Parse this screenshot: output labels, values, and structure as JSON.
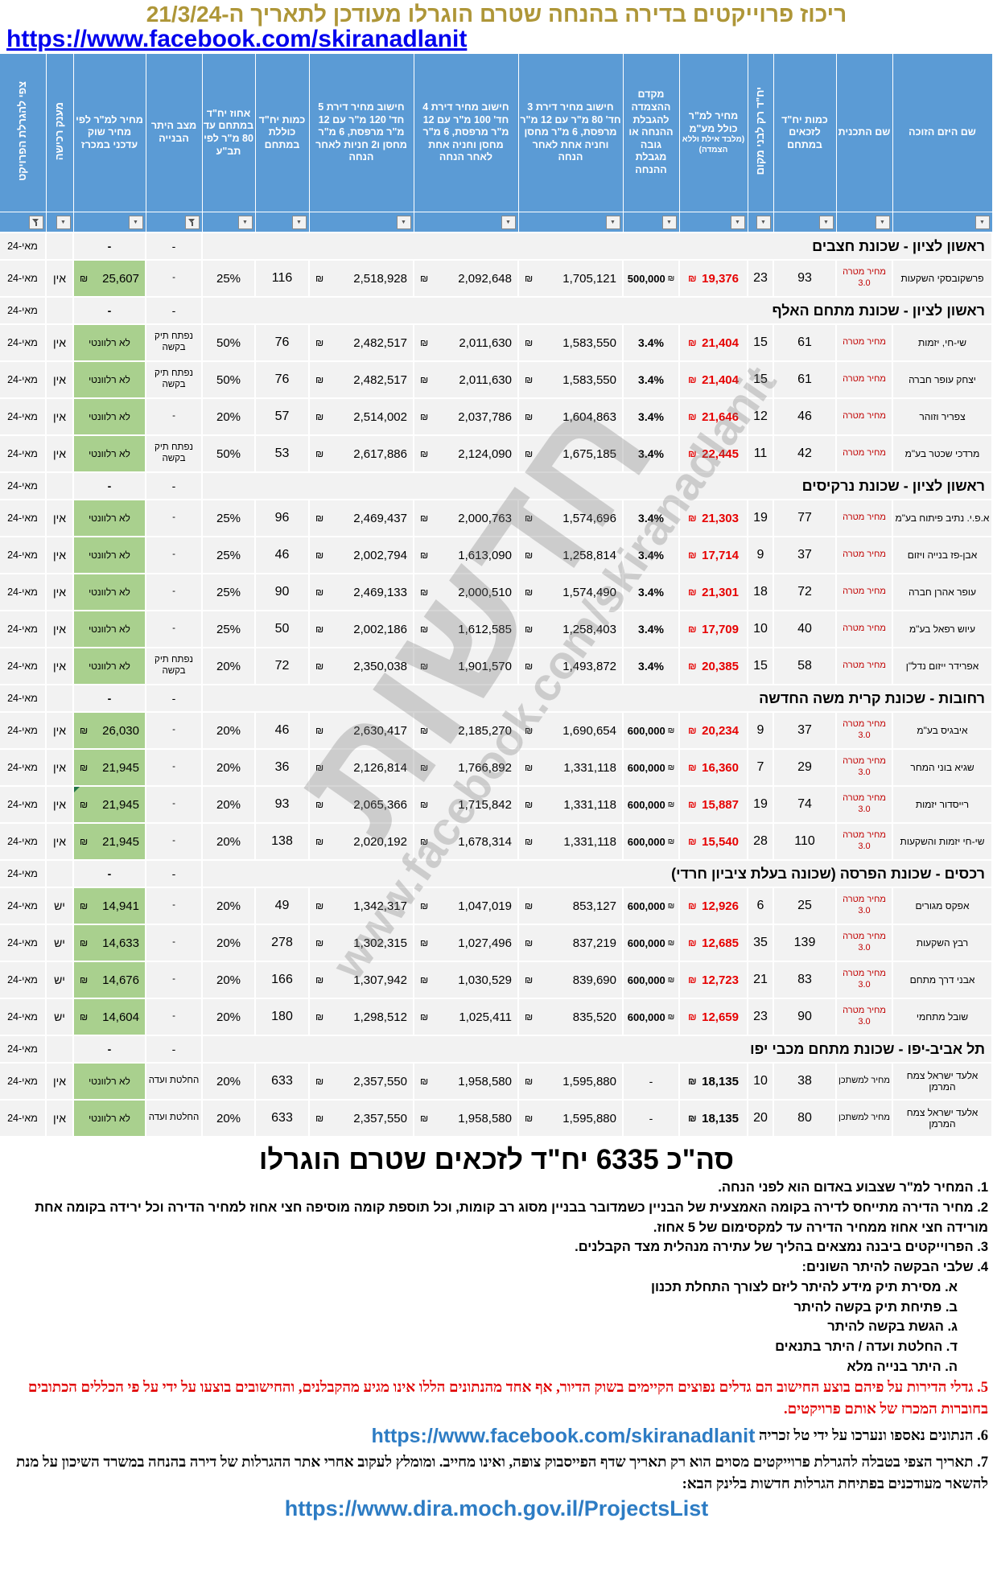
{
  "currency": "₪",
  "icons": {
    "filter_dropdown": "▼"
  },
  "header": {
    "title": "ריכוז פרוייקטים בדירה בהנחה שטרם הוגרלו מעודכן לתאריך ה-21/3/24",
    "facebook_url": "https://www.facebook.com/skiranadlanit"
  },
  "watermark": {
    "line1": "חדשות",
    "line2": "www.facebook.com/skiranadlanit"
  },
  "columns": [
    {
      "label": "שם היזם הזוכה"
    },
    {
      "label": "שם התכנית"
    },
    {
      "label": "כמות יח\"ד לזכאים במתחם"
    },
    {
      "label": "יח\"ד רק לבני מקום",
      "vertical": true
    },
    {
      "label": "מחיר למ\"ר כולל מע\"מ",
      "sub": "(מלבד אילת וללא הצמדה)"
    },
    {
      "label": "מקדם ההצמדה להגבלת ההנחה או גובה מגבלת ההנחה"
    },
    {
      "label": "חישוב מחיר דירת 3 חד' 80 מ\"ר עם 12 מ\"ר מרפסת, 6 מ\"ר מחסן וחניה אחת לאחר הנחה"
    },
    {
      "label": "חישוב מחיר דירת 4 חד' 100 מ\"ר עם 12 מ\"ר מרפסת, 6 מ\"ר מחסן וחניה אחת לאחר הנחה"
    },
    {
      "label": "חישוב מחיר דירת 5 חד' 120 מ\"ר עם 12 מ\"ר מרפסת, 6 מ\"ר מחסן ו2 חניות לאחר הנחה"
    },
    {
      "label": "כמות יח\"ד כוללת במתחם"
    },
    {
      "label": "אחוז יח\"ד במתחם עד 80 מ\"ר לפי תב\"ע"
    },
    {
      "label": "מצב היתר הבנייה",
      "funnel": true
    },
    {
      "label": "מחיר למ\"ר לפי מחיר שוק עדכני במכרז"
    },
    {
      "label": "מענק רכישה",
      "vertical": true
    },
    {
      "label": "צפי להגרלת הפרויקט",
      "vertical": true,
      "funnel": true
    }
  ],
  "sections": [
    {
      "title": "ראשון לציון - שכונת חצבים",
      "permit": "-",
      "market": "-",
      "forecast": "מאי-24",
      "rows": [
        {
          "developer": "פרשקובסקי השקעות",
          "plan": "מחיר מטרה 3.0",
          "plan_color": "red",
          "eligible": "93",
          "locals": "23",
          "sqm": "19,376",
          "sqm_color": "red",
          "coef": "500,000",
          "coef_kind": "money",
          "p3": "1,705,121",
          "p4": "2,092,648",
          "p5": "2,518,928",
          "total": "116",
          "pct": "25%",
          "permit": "-",
          "market": "25,607",
          "market_kind": "money",
          "grant": "אין",
          "forecast": "מאי-24",
          "flags": []
        }
      ]
    },
    {
      "title": "ראשון לציון - שכונת מתחם האלף",
      "permit": "-",
      "market": "-",
      "forecast": "מאי-24",
      "rows": [
        {
          "developer": "שי-חי, יזמות",
          "plan": "מחיר מטרה",
          "plan_color": "red",
          "eligible": "61",
          "locals": "15",
          "sqm": "21,404",
          "sqm_color": "red",
          "coef": "3.4%",
          "coef_kind": "pct",
          "p3": "1,583,550",
          "p4": "2,011,630",
          "p5": "2,482,517",
          "total": "76",
          "pct": "50%",
          "permit": "נפתח תיק בקשה",
          "market": "לא רלוונטי",
          "market_kind": "text",
          "grant": "אין",
          "forecast": "מאי-24",
          "flags": []
        },
        {
          "developer": "יצחק עופר חברה",
          "plan": "מחיר מטרה",
          "plan_color": "red",
          "eligible": "61",
          "locals": "15",
          "sqm": "21,404",
          "sqm_color": "red",
          "coef": "3.4%",
          "coef_kind": "pct",
          "p3": "1,583,550",
          "p4": "2,011,630",
          "p5": "2,482,517",
          "total": "76",
          "pct": "50%",
          "permit": "נפתח תיק בקשה",
          "market": "לא רלוונטי",
          "market_kind": "text",
          "grant": "אין",
          "forecast": "מאי-24",
          "flags": []
        },
        {
          "developer": "צפריר וזוהר",
          "plan": "מחיר מטרה",
          "plan_color": "red",
          "eligible": "46",
          "locals": "12",
          "sqm": "21,646",
          "sqm_color": "red",
          "coef": "3.4%",
          "coef_kind": "pct",
          "p3": "1,604,863",
          "p4": "2,037,786",
          "p5": "2,514,002",
          "total": "57",
          "pct": "20%",
          "permit": "-",
          "market": "לא רלוונטי",
          "market_kind": "text",
          "grant": "אין",
          "forecast": "מאי-24",
          "flags": []
        },
        {
          "developer": "מרדכי שכטר בע\"מ",
          "plan": "מחיר מטרה",
          "plan_color": "red",
          "eligible": "42",
          "locals": "11",
          "sqm": "22,445",
          "sqm_color": "red",
          "coef": "3.4%",
          "coef_kind": "pct",
          "p3": "1,675,185",
          "p4": "2,124,090",
          "p5": "2,617,886",
          "total": "53",
          "pct": "50%",
          "permit": "נפתח תיק בקשה",
          "market": "לא רלוונטי",
          "market_kind": "text",
          "grant": "אין",
          "forecast": "מאי-24",
          "flags": []
        }
      ]
    },
    {
      "title": "ראשון לציון - שכונת נרקיסים",
      "permit": "-",
      "market": "-",
      "forecast": "מאי-24",
      "rows": [
        {
          "developer": "א.פ.י. נתיב פיתוח בע\"מ",
          "plan": "מחיר מטרה",
          "plan_color": "red",
          "eligible": "77",
          "locals": "19",
          "sqm": "21,303",
          "sqm_color": "red",
          "coef": "3.4%",
          "coef_kind": "pct",
          "p3": "1,574,696",
          "p4": "2,000,763",
          "p5": "2,469,437",
          "total": "96",
          "pct": "25%",
          "permit": "-",
          "market": "לא רלוונטי",
          "market_kind": "text",
          "grant": "אין",
          "forecast": "מאי-24",
          "flags": []
        },
        {
          "developer": "אבן-פז בנייה ויזום",
          "plan": "מחיר מטרה",
          "plan_color": "red",
          "eligible": "37",
          "locals": "9",
          "sqm": "17,714",
          "sqm_color": "red",
          "coef": "3.4%",
          "coef_kind": "pct",
          "p3": "1,258,814",
          "p4": "1,613,090",
          "p5": "2,002,794",
          "total": "46",
          "pct": "25%",
          "permit": "-",
          "market": "לא רלוונטי",
          "market_kind": "text",
          "grant": "אין",
          "forecast": "מאי-24",
          "flags": []
        },
        {
          "developer": "עופר אהרן חברה",
          "plan": "מחיר מטרה",
          "plan_color": "red",
          "eligible": "72",
          "locals": "18",
          "sqm": "21,301",
          "sqm_color": "red",
          "coef": "3.4%",
          "coef_kind": "pct",
          "p3": "1,574,490",
          "p4": "2,000,510",
          "p5": "2,469,133",
          "total": "90",
          "pct": "25%",
          "permit": "-",
          "market": "לא רלוונטי",
          "market_kind": "text",
          "grant": "אין",
          "forecast": "מאי-24",
          "flags": []
        },
        {
          "developer": "עיוש רפאל בע\"מ",
          "plan": "מחיר מטרה",
          "plan_color": "red",
          "eligible": "40",
          "locals": "10",
          "sqm": "17,709",
          "sqm_color": "red",
          "coef": "3.4%",
          "coef_kind": "pct",
          "p3": "1,258,403",
          "p4": "1,612,585",
          "p5": "2,002,186",
          "total": "50",
          "pct": "25%",
          "permit": "-",
          "market": "לא רלוונטי",
          "market_kind": "text",
          "grant": "אין",
          "forecast": "מאי-24",
          "flags": []
        },
        {
          "developer": "אפרידר ייזום נדל\"ן",
          "plan": "מחיר מטרה",
          "plan_color": "red",
          "eligible": "58",
          "locals": "15",
          "sqm": "20,385",
          "sqm_color": "red",
          "coef": "3.4%",
          "coef_kind": "pct",
          "p3": "1,493,872",
          "p4": "1,901,570",
          "p5": "2,350,038",
          "total": "72",
          "pct": "20%",
          "permit": "נפתח תיק בקשה",
          "market": "לא רלוונטי",
          "market_kind": "text",
          "grant": "אין",
          "forecast": "מאי-24",
          "flags": []
        }
      ]
    },
    {
      "title": "רחובות - שכונת קרית משה החדשה",
      "permit": "-",
      "market": "-",
      "forecast": "מאי-24",
      "rows": [
        {
          "developer": "איבגיס בע\"מ",
          "plan": "מחיר מטרה 3.0",
          "plan_color": "red",
          "eligible": "37",
          "locals": "9",
          "sqm": "20,234",
          "sqm_color": "red",
          "coef": "600,000",
          "coef_kind": "money",
          "p3": "1,690,654",
          "p4": "2,185,270",
          "p5": "2,630,417",
          "total": "46",
          "pct": "20%",
          "permit": "-",
          "market": "26,030",
          "market_kind": "money",
          "grant": "אין",
          "forecast": "מאי-24",
          "flags": []
        },
        {
          "developer": "שגיא בוני המחר",
          "plan": "מחיר מטרה 3.0",
          "plan_color": "red",
          "eligible": "29",
          "locals": "7",
          "sqm": "16,360",
          "sqm_color": "red",
          "coef": "600,000",
          "coef_kind": "money",
          "p3": "1,331,118",
          "p4": "1,766,892",
          "p5": "2,126,814",
          "total": "36",
          "pct": "20%",
          "permit": "-",
          "market": "21,945",
          "market_kind": "money",
          "grant": "אין",
          "forecast": "מאי-24",
          "flags": []
        },
        {
          "developer": "רייסדור יזמות",
          "plan": "מחיר מטרה 3.0",
          "plan_color": "red",
          "eligible": "74",
          "locals": "19",
          "sqm": "15,887",
          "sqm_color": "red",
          "coef": "600,000",
          "coef_kind": "money",
          "p3": "1,331,118",
          "p4": "1,715,842",
          "p5": "2,065,366",
          "total": "93",
          "pct": "20%",
          "permit": "-",
          "market": "21,945",
          "market_kind": "money",
          "grant": "אין",
          "forecast": "מאי-24",
          "flags": [
            "eligible",
            "permit",
            "market"
          ]
        },
        {
          "developer": "שי-חי יזמות והשקעות",
          "plan": "מחיר מטרה 3.0",
          "plan_color": "red",
          "eligible": "110",
          "locals": "28",
          "sqm": "15,540",
          "sqm_color": "red",
          "coef": "600,000",
          "coef_kind": "money",
          "p3": "1,331,118",
          "p4": "1,678,314",
          "p5": "2,020,192",
          "total": "138",
          "pct": "20%",
          "permit": "-",
          "market": "21,945",
          "market_kind": "money",
          "grant": "אין",
          "forecast": "מאי-24",
          "flags": [
            "eligible"
          ]
        }
      ]
    },
    {
      "title": "רכסים - שכונת הפרסה  (שכונה בעלת ציביון חרדי)",
      "permit": "-",
      "market": "-",
      "forecast": "מאי-24",
      "rows": [
        {
          "developer": "אפקס מגורים",
          "plan": "מחיר מטרה 3.0",
          "plan_color": "red",
          "eligible": "25",
          "locals": "6",
          "sqm": "12,926",
          "sqm_color": "red",
          "coef": "600,000",
          "coef_kind": "money",
          "p3": "853,127",
          "p4": "1,047,019",
          "p5": "1,342,317",
          "total": "49",
          "pct": "20%",
          "permit": "-",
          "market": "14,941",
          "market_kind": "money",
          "grant": "יש",
          "forecast": "מאי-24",
          "flags": [
            "eligible"
          ]
        },
        {
          "developer": "רבץ השקעות",
          "plan": "מחיר מטרה 3.0",
          "plan_color": "red",
          "eligible": "139",
          "locals": "35",
          "sqm": "12,685",
          "sqm_color": "red",
          "coef": "600,000",
          "coef_kind": "money",
          "p3": "837,219",
          "p4": "1,027,496",
          "p5": "1,302,315",
          "total": "278",
          "pct": "20%",
          "permit": "-",
          "market": "14,633",
          "market_kind": "money",
          "grant": "יש",
          "forecast": "מאי-24",
          "flags": [
            "eligible"
          ]
        },
        {
          "developer": "אבני דרך מתחם",
          "plan": "מחיר מטרה 3.0",
          "plan_color": "red",
          "eligible": "83",
          "locals": "21",
          "sqm": "12,723",
          "sqm_color": "red",
          "coef": "600,000",
          "coef_kind": "money",
          "p3": "839,690",
          "p4": "1,030,529",
          "p5": "1,307,942",
          "total": "166",
          "pct": "20%",
          "permit": "-",
          "market": "14,676",
          "market_kind": "money",
          "grant": "יש",
          "forecast": "מאי-24",
          "flags": [
            "eligible"
          ]
        },
        {
          "developer": "שובל מתחמי",
          "plan": "מחיר מטרה 3.0",
          "plan_color": "red",
          "eligible": "90",
          "locals": "23",
          "sqm": "12,659",
          "sqm_color": "red",
          "coef": "600,000",
          "coef_kind": "money",
          "p3": "835,520",
          "p4": "1,025,411",
          "p5": "1,298,512",
          "total": "180",
          "pct": "20%",
          "permit": "-",
          "market": "14,604",
          "market_kind": "money",
          "grant": "יש",
          "forecast": "מאי-24",
          "flags": [
            "eligible"
          ]
        }
      ]
    },
    {
      "title": "תל אביב-יפו - שכונת מתחם מכבי יפו",
      "permit": "-",
      "market": "-",
      "forecast": "מאי-24",
      "rows": [
        {
          "developer": "אלעד ישראל צמח המרמן",
          "plan": "מחיר למשתכן",
          "plan_color": "black",
          "eligible": "38",
          "locals": "10",
          "sqm": "18,135",
          "sqm_color": "black",
          "coef": "-",
          "coef_kind": "none",
          "p3": "1,595,880",
          "p4": "1,958,580",
          "p5": "2,357,550",
          "total": "633",
          "pct": "20%",
          "permit": "החלטת ועדה",
          "market": "לא רלוונטי",
          "market_kind": "text",
          "grant": "אין",
          "forecast": "מאי-24",
          "flags": [
            "eligible"
          ]
        },
        {
          "developer": "אלעד ישראל צמח המרמן",
          "plan": "מחיר למשתכן",
          "plan_color": "black",
          "eligible": "80",
          "locals": "20",
          "sqm": "18,135",
          "sqm_color": "black",
          "coef": "-",
          "coef_kind": "none",
          "p3": "1,595,880",
          "p4": "1,958,580",
          "p5": "2,357,550",
          "total": "633",
          "pct": "20%",
          "permit": "החלטת ועדה",
          "market": "לא רלוונטי",
          "market_kind": "text",
          "grant": "אין",
          "forecast": "מאי-24",
          "flags": [
            "eligible"
          ]
        }
      ]
    }
  ],
  "summary": "סה\"כ 6335 יח\"ד לזכאים שטרם הוגרלו",
  "notes": [
    {
      "text": "1. המחיר למ\"ר שצבוע באדום הוא לפני הנחה.",
      "style": "sans"
    },
    {
      "text": "2. מחיר הדירה מתייחס לדירה בקומה האמצעית של הבניין כשמדובר בבניין מסוג רב קומות, וכל תוספת קומה מוסיפה חצי אחוז למחיר הדירה וכל ירידה בקומה אחת מורידה חצי אחוז ממחיר הדירה עד למקסימום של 5 אחוז.",
      "style": "sans"
    },
    {
      "text": "3. הפרוייקטים ביבנה נמצאים בהליך של עתירה מנהלית מצד הקבלנים.",
      "style": "sans"
    },
    {
      "text": "4. שלבי הבקשה להיתר השונים:",
      "style": "sans"
    },
    {
      "text": "א. מסירת תיק מידע להיתר ליזם לצורך התחלת תכנון",
      "style": "sans",
      "indent": true
    },
    {
      "text": "ב. פתיחת תיק בקשה להיתר",
      "style": "sans",
      "indent": true
    },
    {
      "text": "ג. הגשת בקשה להיתר",
      "style": "sans",
      "indent": true
    },
    {
      "text": "ד. החלטת ועדה / היתר בתנאים",
      "style": "sans",
      "indent": true
    },
    {
      "text": "ה. היתר בנייה מלא",
      "style": "sans",
      "indent": true
    },
    {
      "text": "5. גדלי הדירות על פיהם בוצע החישוב הם גדלים נפוצים הקיימים בשוק הדיור, אף אחד מהנתונים הללו אינו מגיע מהקבלנים, והחישובים בוצעו על ידי על פי הכללים הכתובים בחוברות המכרז של אותם פרויקטים.",
      "style": "red"
    },
    {
      "text": "6. הנתונים נאספו ונערכו על ידי טל זכריה",
      "style": "serif",
      "link": "https://www.facebook.com/skiranadlanit"
    },
    {
      "text": "7. תאריך הצפי בטבלה להגרלת פרוייקטים מסוים הוא רק תאריך שדף הפייסבוק צופה, ואינו מחייב. ומומלץ לעקוב אחרי אתר ההגרלות של דירה בהנחה במשרד השיכון על מנת להשאר מעודכנים בפתיחת הגרלות חדשות בלינק הבא:",
      "style": "serif"
    }
  ],
  "bottom_link": "https://www.dira.moch.gov.il/ProjectsList"
}
